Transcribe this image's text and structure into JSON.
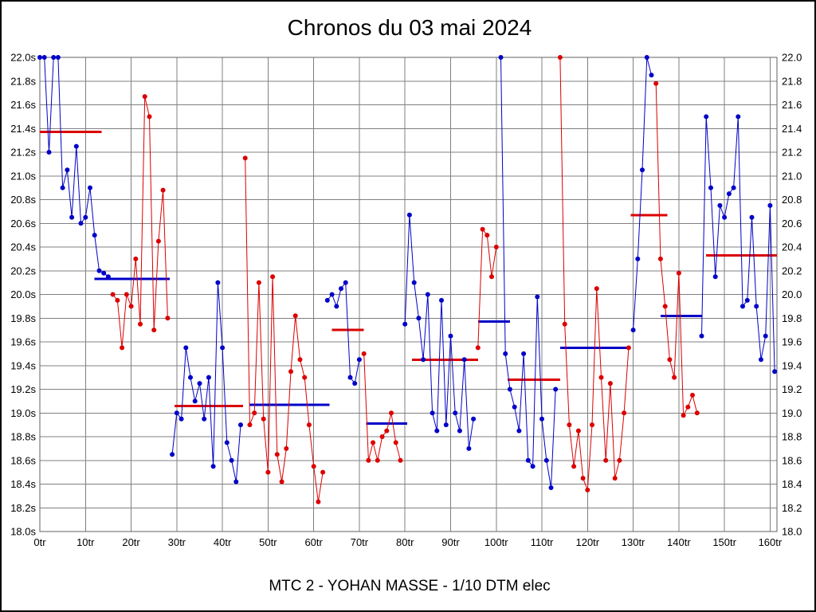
{
  "chart_data": {
    "type": "line",
    "title": "Chronos du 03 mai 2024",
    "subtitle": "MTC 2 - YOHAN MASSE - 1/10 DTM elec",
    "x_unit": "tr",
    "y_unit": "s",
    "xlim": [
      0,
      161.5
    ],
    "ylim": [
      18.0,
      22.0
    ],
    "grid": true,
    "legend": "none",
    "colors": {
      "blue": "#0000c8",
      "red": "#dc0000"
    },
    "x_axis": {
      "step": 10,
      "ticks": [
        "0tr",
        "10tr",
        "20tr",
        "30tr",
        "40tr",
        "50tr",
        "60tr",
        "70tr",
        "80tr",
        "90tr",
        "100tr",
        "110tr",
        "120tr",
        "130tr",
        "140tr",
        "150tr",
        "160tr"
      ]
    },
    "y_axis": {
      "step": 0.2,
      "ticks_left": [
        "22.0s",
        "21.8s",
        "21.6s",
        "21.4s",
        "21.2s",
        "21.0s",
        "20.8s",
        "20.6s",
        "20.4s",
        "20.2s",
        "20.0s",
        "19.8s",
        "19.6s",
        "19.4s",
        "19.2s",
        "19.0s",
        "18.8s",
        "18.6s",
        "18.4s",
        "18.2s",
        "18.0s"
      ],
      "ticks_right": [
        "22.0",
        "21.8",
        "21.6",
        "21.4",
        "21.2",
        "21.0",
        "20.8",
        "20.6",
        "20.4",
        "20.2",
        "20.0",
        "19.8",
        "19.6",
        "19.4",
        "19.2",
        "19.0",
        "18.8",
        "18.6",
        "18.4",
        "18.2",
        "18.0"
      ]
    },
    "segments": [
      {
        "name": "stint-1",
        "color": "blue",
        "start": 0,
        "values": [
          22.0,
          22.0,
          21.2,
          22.0,
          22.0,
          20.9,
          21.05,
          20.65,
          21.25,
          20.6,
          20.65,
          20.9,
          20.5,
          20.2,
          20.18,
          20.15
        ]
      },
      {
        "name": "stint-2",
        "color": "red",
        "start": 16,
        "values": [
          20.0,
          19.95,
          19.55,
          20.0,
          19.9,
          20.3,
          19.75,
          21.67,
          21.5,
          19.7,
          20.45,
          20.88,
          19.8
        ]
      },
      {
        "name": "stint-3",
        "color": "blue",
        "start": 29,
        "values": [
          18.65,
          19.0,
          18.95,
          19.55,
          19.3,
          19.1,
          19.25,
          18.95,
          19.3,
          18.55,
          20.1,
          19.55,
          18.75,
          18.6,
          18.42,
          18.9
        ]
      },
      {
        "name": "stint-4",
        "color": "red",
        "start": 45,
        "values": [
          21.15,
          18.9,
          19.0,
          20.1,
          18.95,
          18.5,
          20.15,
          18.65,
          18.42,
          18.7,
          19.35,
          19.82,
          19.45,
          19.3,
          18.9,
          18.55,
          18.25,
          18.5
        ]
      },
      {
        "name": "stint-5",
        "color": "blue",
        "start": 63,
        "values": [
          19.95,
          20.0,
          19.9,
          20.05,
          20.1,
          19.3,
          19.25,
          19.45
        ]
      },
      {
        "name": "stint-6",
        "color": "red",
        "start": 71,
        "values": [
          19.5,
          18.6,
          18.75,
          18.6,
          18.8,
          18.85,
          19.0,
          18.75,
          18.6
        ]
      },
      {
        "name": "stint-7",
        "color": "blue",
        "start": 80,
        "values": [
          19.75,
          20.67,
          20.1,
          19.8,
          19.45,
          20.0,
          19.0,
          18.85,
          19.95,
          18.9,
          19.65,
          19.0,
          18.85,
          19.45,
          18.7,
          18.95
        ]
      },
      {
        "name": "stint-8",
        "color": "red",
        "start": 96,
        "values": [
          19.55,
          20.55,
          20.5,
          20.15,
          20.4
        ]
      },
      {
        "name": "stint-9",
        "color": "blue",
        "start": 101,
        "values": [
          22.0,
          19.5,
          19.2,
          19.05,
          18.85,
          19.5,
          18.6,
          18.55,
          19.98,
          18.95,
          18.6,
          18.37,
          19.2
        ]
      },
      {
        "name": "stint-10",
        "color": "red",
        "start": 114,
        "values": [
          22.0,
          19.75,
          18.9,
          18.55,
          18.85,
          18.45,
          18.35,
          18.9,
          20.05,
          19.3,
          18.6,
          19.25,
          18.45,
          18.6,
          19.0,
          19.55
        ]
      },
      {
        "name": "stint-11",
        "color": "blue",
        "start": 130,
        "values": [
          19.7,
          20.3,
          21.05,
          22.0,
          21.85
        ]
      },
      {
        "name": "stint-12",
        "color": "red",
        "start": 135,
        "values": [
          21.78,
          20.3,
          19.9,
          19.45,
          19.3,
          20.18,
          18.98,
          19.05,
          19.15,
          19.0
        ]
      },
      {
        "name": "stint-13",
        "color": "blue",
        "start": 145,
        "values": [
          19.65,
          21.5,
          20.9,
          20.15,
          20.75,
          20.65,
          20.85,
          20.9,
          21.5,
          19.9,
          19.95,
          20.65,
          19.9,
          19.45,
          19.65,
          20.75,
          19.35
        ]
      }
    ],
    "avg_lines": [
      {
        "value": 21.37,
        "color": "red",
        "from": 0,
        "to": 13.5
      },
      {
        "value": 20.13,
        "color": "blue",
        "from": 12,
        "to": 28.5
      },
      {
        "value": 19.06,
        "color": "red",
        "from": 29.5,
        "to": 44.5
      },
      {
        "value": 19.07,
        "color": "blue",
        "from": 46,
        "to": 63.5
      },
      {
        "value": 19.7,
        "color": "red",
        "from": 64,
        "to": 71
      },
      {
        "value": 18.91,
        "color": "blue",
        "from": 71.5,
        "to": 80.5
      },
      {
        "value": 19.45,
        "color": "red",
        "from": 81.5,
        "to": 96
      },
      {
        "value": 19.77,
        "color": "blue",
        "from": 96,
        "to": 103
      },
      {
        "value": 19.28,
        "color": "red",
        "from": 102.5,
        "to": 114
      },
      {
        "value": 19.55,
        "color": "blue",
        "from": 114,
        "to": 129
      },
      {
        "value": 20.67,
        "color": "red",
        "from": 129.5,
        "to": 137.5
      },
      {
        "value": 19.82,
        "color": "blue",
        "from": 136,
        "to": 145
      },
      {
        "value": 20.33,
        "color": "red",
        "from": 146,
        "to": 161.5
      }
    ]
  }
}
